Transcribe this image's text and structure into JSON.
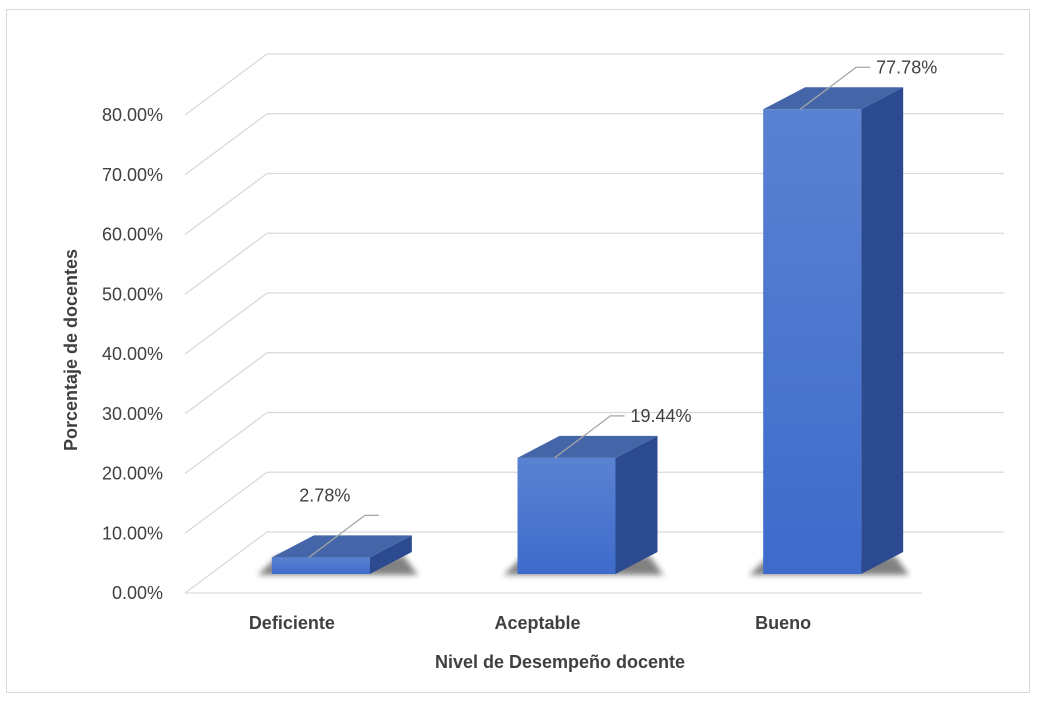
{
  "chart_data": {
    "type": "bar",
    "style": "3d-column",
    "categories": [
      "Deficiente",
      "Aceptable",
      "Bueno"
    ],
    "values": [
      2.78,
      19.44,
      77.78
    ],
    "data_labels": [
      "2.78%",
      "19.44%",
      "77.78%"
    ],
    "xlabel": "Nivel de Desempeño docente",
    "ylabel": "Porcentaje de docentes",
    "ylim": [
      0,
      80
    ],
    "yticks": [
      "0.00%",
      "10.00%",
      "20.00%",
      "30.00%",
      "40.00%",
      "50.00%",
      "60.00%",
      "70.00%",
      "80.00%"
    ],
    "grid": true,
    "legend": "none",
    "colors": {
      "bar_front_top": "#5a82d2",
      "bar_front_bottom": "#3e6bcb",
      "bar_side": "#2b4a8f",
      "bar_top": "#4466a8",
      "gridline": "#d9d9d9",
      "text": "#404040"
    }
  }
}
